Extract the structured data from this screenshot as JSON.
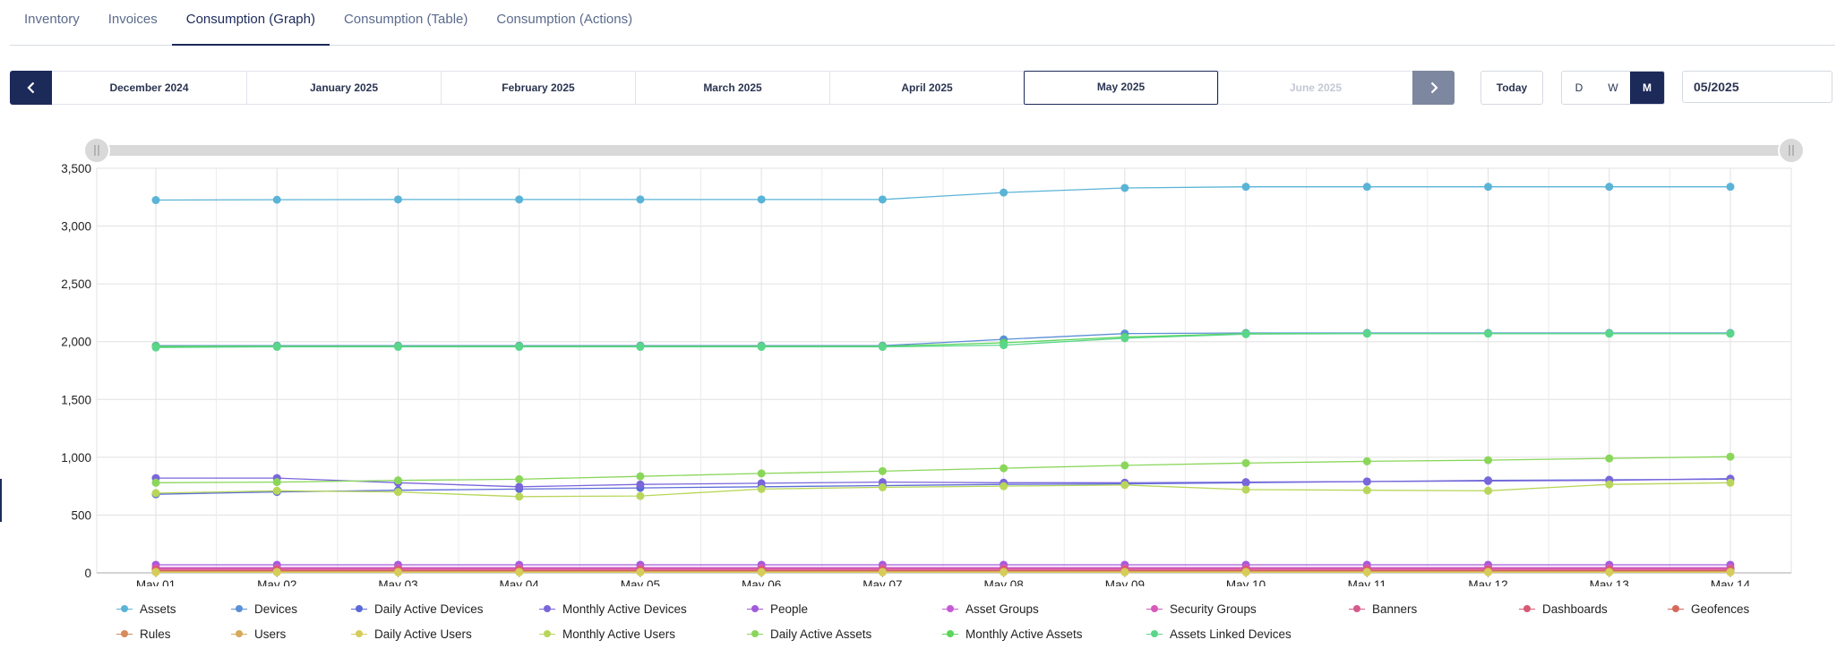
{
  "tabs": [
    {
      "label": "Inventory",
      "active": false
    },
    {
      "label": "Invoices",
      "active": false
    },
    {
      "label": "Consumption (Graph)",
      "active": true
    },
    {
      "label": "Consumption (Table)",
      "active": false
    },
    {
      "label": "Consumption (Actions)",
      "active": false
    }
  ],
  "month_nav": {
    "prev_icon": "chevron-left-icon",
    "next_icon": "chevron-right-icon",
    "months": [
      {
        "label": "December 2024",
        "state": "normal"
      },
      {
        "label": "January 2025",
        "state": "normal"
      },
      {
        "label": "February 2025",
        "state": "normal"
      },
      {
        "label": "March 2025",
        "state": "normal"
      },
      {
        "label": "April 2025",
        "state": "normal"
      },
      {
        "label": "May 2025",
        "state": "selected"
      },
      {
        "label": "June 2025",
        "state": "disabled"
      }
    ]
  },
  "controls": {
    "today_label": "Today",
    "granularity": [
      {
        "label": "D",
        "active": false
      },
      {
        "label": "W",
        "active": false
      },
      {
        "label": "M",
        "active": true
      }
    ],
    "date_value": "05/2025"
  },
  "colors": {
    "primary": "#1c2a5a",
    "next_disabled": "#7d879f"
  },
  "chart_data": {
    "type": "line",
    "ylim": [
      0,
      3500
    ],
    "yticks": [
      "0",
      "500",
      "1,000",
      "1,500",
      "2,000",
      "2,500",
      "3,000",
      "3,500"
    ],
    "x": [
      "May 01",
      "May 02",
      "May 03",
      "May 04",
      "May 05",
      "May 06",
      "May 07",
      "May 08",
      "May 09",
      "May 10",
      "May 11",
      "May 12",
      "May 13",
      "May 14"
    ],
    "grid": true,
    "legend_position": "bottom",
    "series": [
      {
        "name": "Assets",
        "color": "#5ab4d6",
        "values": [
          3225,
          3228,
          3230,
          3230,
          3230,
          3230,
          3230,
          3290,
          3330,
          3340,
          3340,
          3340,
          3340,
          3340
        ]
      },
      {
        "name": "Devices",
        "color": "#5b8fd6",
        "values": [
          1965,
          1965,
          1965,
          1965,
          1965,
          1965,
          1965,
          2020,
          2070,
          2075,
          2075,
          2075,
          2075,
          2075
        ]
      },
      {
        "name": "Daily Active Devices",
        "color": "#5a6bd8",
        "values": [
          680,
          700,
          715,
          725,
          735,
          745,
          755,
          765,
          770,
          780,
          790,
          800,
          805,
          810
        ]
      },
      {
        "name": "Monthly Active Devices",
        "color": "#7a66db",
        "values": [
          820,
          820,
          780,
          745,
          765,
          775,
          785,
          780,
          780,
          785,
          790,
          795,
          800,
          815
        ]
      },
      {
        "name": "People",
        "color": "#a25adb",
        "values": [
          70,
          70,
          70,
          70,
          70,
          70,
          70,
          70,
          70,
          70,
          70,
          70,
          70,
          70
        ]
      },
      {
        "name": "Asset Groups",
        "color": "#c65ad6",
        "values": [
          45,
          45,
          45,
          45,
          45,
          45,
          45,
          45,
          45,
          45,
          45,
          45,
          45,
          45
        ]
      },
      {
        "name": "Security Groups",
        "color": "#d65ab8",
        "values": [
          40,
          40,
          40,
          40,
          40,
          40,
          40,
          40,
          40,
          40,
          40,
          40,
          40,
          40
        ]
      },
      {
        "name": "Banners",
        "color": "#d65a8c",
        "values": [
          30,
          30,
          30,
          30,
          30,
          30,
          30,
          30,
          30,
          30,
          30,
          30,
          30,
          30
        ]
      },
      {
        "name": "Dashboards",
        "color": "#d65a73",
        "values": [
          20,
          20,
          20,
          20,
          20,
          20,
          20,
          20,
          20,
          20,
          20,
          20,
          20,
          20
        ]
      },
      {
        "name": "Geofences",
        "color": "#d66a5a",
        "values": [
          15,
          15,
          15,
          15,
          15,
          15,
          15,
          15,
          15,
          15,
          15,
          15,
          15,
          15
        ]
      },
      {
        "name": "Rules",
        "color": "#d68a5a",
        "values": [
          10,
          10,
          10,
          10,
          10,
          10,
          10,
          10,
          10,
          10,
          10,
          10,
          10,
          10
        ]
      },
      {
        "name": "Users",
        "color": "#d6aa5a",
        "values": [
          8,
          8,
          8,
          8,
          8,
          8,
          8,
          8,
          8,
          8,
          8,
          8,
          8,
          8
        ]
      },
      {
        "name": "Daily Active Users",
        "color": "#d6cc5a",
        "values": [
          5,
          5,
          5,
          5,
          5,
          5,
          5,
          5,
          5,
          5,
          5,
          5,
          5,
          5
        ]
      },
      {
        "name": "Monthly Active Users",
        "color": "#b8d65a",
        "values": [
          690,
          710,
          700,
          660,
          665,
          725,
          740,
          750,
          760,
          720,
          715,
          710,
          765,
          780
        ]
      },
      {
        "name": "Daily Active Assets",
        "color": "#8ad65a",
        "values": [
          780,
          785,
          800,
          810,
          835,
          860,
          880,
          905,
          930,
          950,
          965,
          975,
          990,
          1005
        ]
      },
      {
        "name": "Monthly Active Assets",
        "color": "#5ad65a",
        "values": [
          1960,
          1960,
          1960,
          1960,
          1960,
          1960,
          1960,
          1990,
          2040,
          2070,
          2070,
          2070,
          2070,
          2070
        ]
      },
      {
        "name": "Assets Linked Devices",
        "color": "#5ad68a",
        "values": [
          1950,
          1955,
          1955,
          1955,
          1955,
          1955,
          1955,
          1970,
          2030,
          2065,
          2070,
          2070,
          2070,
          2070
        ]
      }
    ]
  }
}
